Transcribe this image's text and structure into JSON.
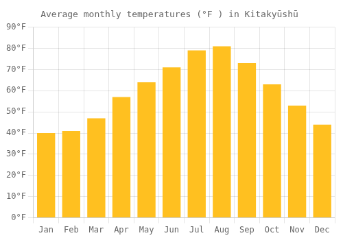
{
  "chart_data": {
    "type": "bar",
    "title": "Average monthly temperatures (°F ) in Kitakyūshū",
    "categories": [
      "Jan",
      "Feb",
      "Mar",
      "Apr",
      "May",
      "Jun",
      "Jul",
      "Aug",
      "Sep",
      "Oct",
      "Nov",
      "Dec"
    ],
    "values": [
      40,
      41,
      47,
      57,
      64,
      71,
      79,
      81,
      73,
      63,
      53,
      44
    ],
    "color": "#FFC020",
    "ylim": [
      0,
      90
    ],
    "yticks": [
      {
        "value": 0,
        "label": "0°F"
      },
      {
        "value": 10,
        "label": "10°F"
      },
      {
        "value": 20,
        "label": "20°F"
      },
      {
        "value": 30,
        "label": "30°F"
      },
      {
        "value": 40,
        "label": "40°F"
      },
      {
        "value": 50,
        "label": "50°F"
      },
      {
        "value": 60,
        "label": "60°F"
      },
      {
        "value": 70,
        "label": "70°F"
      },
      {
        "value": 80,
        "label": "80°F"
      },
      {
        "value": 90,
        "label": "90°F"
      }
    ],
    "grid": true
  }
}
